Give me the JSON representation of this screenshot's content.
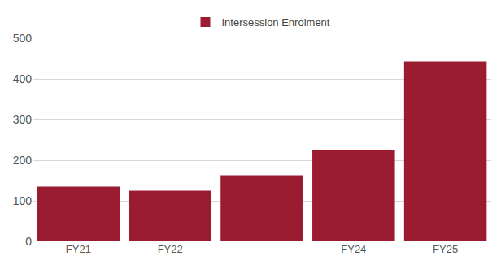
{
  "chart_data": {
    "type": "bar",
    "categories": [
      "FY21",
      "FY22",
      null,
      "FY24",
      "FY25"
    ],
    "series": [
      {
        "name": "Intersession Enrolment",
        "color": "#9b1b30",
        "values": [
          135,
          125,
          163,
          225,
          443
        ]
      }
    ],
    "ylim": [
      0,
      500
    ],
    "yticks": [
      0,
      100,
      200,
      300,
      400,
      500
    ],
    "grid": true,
    "legend": "top"
  }
}
